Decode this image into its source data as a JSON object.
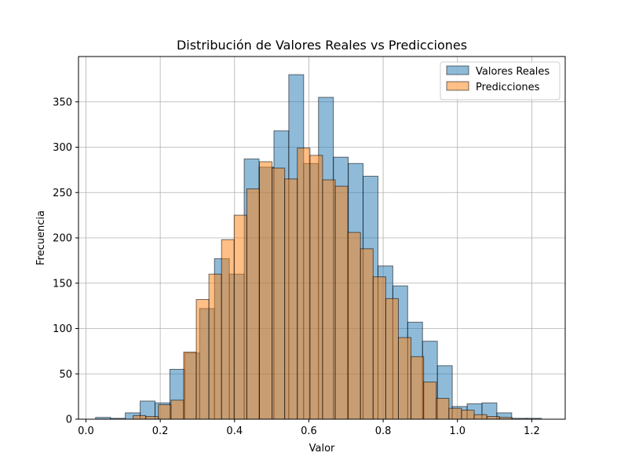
{
  "chart_data": {
    "type": "bar",
    "title": "Distribución de Valores Reales vs Predicciones",
    "xlabel": "Valor",
    "ylabel": "Frecuencia",
    "xlim": [
      -0.02,
      1.29
    ],
    "ylim": [
      0,
      400
    ],
    "x_ticks": [
      0.0,
      0.2,
      0.4,
      0.6,
      0.8,
      1.0,
      1.2
    ],
    "x_tick_labels": [
      "0.0",
      "0.2",
      "0.4",
      "0.6",
      "0.8",
      "1.0",
      "1.2"
    ],
    "y_ticks": [
      0,
      50,
      100,
      150,
      200,
      250,
      300,
      350
    ],
    "y_tick_labels": [
      "0",
      "50",
      "100",
      "150",
      "200",
      "250",
      "300",
      "350"
    ],
    "grid": true,
    "legend": "top-right",
    "series": [
      {
        "name": "Valores Reales",
        "color": "#1f77b4",
        "bin_edges": [
          0.026,
          0.066,
          0.106,
          0.146,
          0.186,
          0.226,
          0.266,
          0.306,
          0.346,
          0.386,
          0.426,
          0.466,
          0.506,
          0.546,
          0.586,
          0.626,
          0.666,
          0.706,
          0.746,
          0.786,
          0.826,
          0.866,
          0.906,
          0.946,
          0.986,
          1.026,
          1.066,
          1.106,
          1.146,
          1.186,
          1.226
        ],
        "counts": [
          2,
          1,
          7,
          20,
          18,
          55,
          73,
          122,
          177,
          160,
          287,
          278,
          318,
          380,
          282,
          355,
          289,
          282,
          268,
          169,
          147,
          107,
          86,
          59,
          14,
          17,
          18,
          7,
          1,
          1
        ]
      },
      {
        "name": "Predicciones",
        "color": "#ff7f0e",
        "bin_edges": [
          0.127,
          0.161,
          0.195,
          0.229,
          0.263,
          0.297,
          0.331,
          0.365,
          0.399,
          0.433,
          0.467,
          0.501,
          0.535,
          0.569,
          0.603,
          0.637,
          0.671,
          0.705,
          0.739,
          0.773,
          0.807,
          0.841,
          0.875,
          0.909,
          0.943,
          0.977,
          1.011,
          1.045,
          1.079,
          1.113,
          1.147
        ],
        "counts": [
          4,
          3,
          16,
          21,
          74,
          132,
          160,
          198,
          225,
          254,
          284,
          277,
          265,
          299,
          291,
          264,
          257,
          206,
          188,
          157,
          133,
          90,
          69,
          41,
          23,
          12,
          10,
          5,
          3,
          2
        ]
      }
    ]
  }
}
